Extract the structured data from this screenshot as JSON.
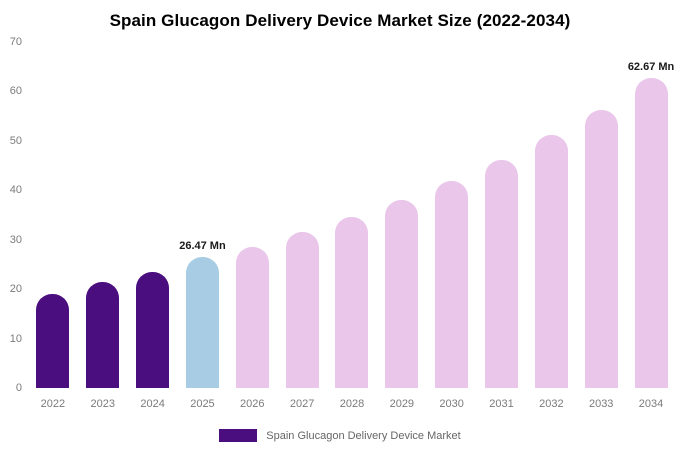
{
  "chart_data": {
    "type": "bar",
    "title": "Spain Glucagon Delivery Device Market Size (2022-2034)",
    "categories": [
      "2022",
      "2023",
      "2024",
      "2025",
      "2026",
      "2027",
      "2028",
      "2029",
      "2030",
      "2031",
      "2032",
      "2033",
      "2034"
    ],
    "values": [
      19.1,
      21.4,
      23.5,
      26.47,
      28.5,
      31.5,
      34.6,
      38.1,
      41.9,
      46.1,
      51.2,
      56.3,
      62.67
    ],
    "unit": "Mn",
    "ylim": [
      0,
      70
    ],
    "yticks": [
      0,
      10,
      20,
      30,
      40,
      50,
      60,
      70
    ],
    "grid": false,
    "xlabel": "",
    "ylabel": "",
    "legend_position": "bottom",
    "legend_label": "Spain Glucagon Delivery Device Market",
    "value_labels": [
      "",
      "",
      "",
      "26.47 Mn",
      "",
      "",
      "",
      "",
      "",
      "",
      "",
      "",
      "62.67 Mn"
    ],
    "bar_colors": [
      "#4a0e7f",
      "#4a0e7f",
      "#4a0e7f",
      "#a8cce3",
      "#e9c6ea",
      "#e9c6ea",
      "#e9c6ea",
      "#e9c6ea",
      "#e9c6ea",
      "#e9c6ea",
      "#e9c6ea",
      "#e9c6ea",
      "#e9c6ea"
    ],
    "legend_color": "#4a0e7f",
    "axis_text_color": "#7b7b7b"
  }
}
